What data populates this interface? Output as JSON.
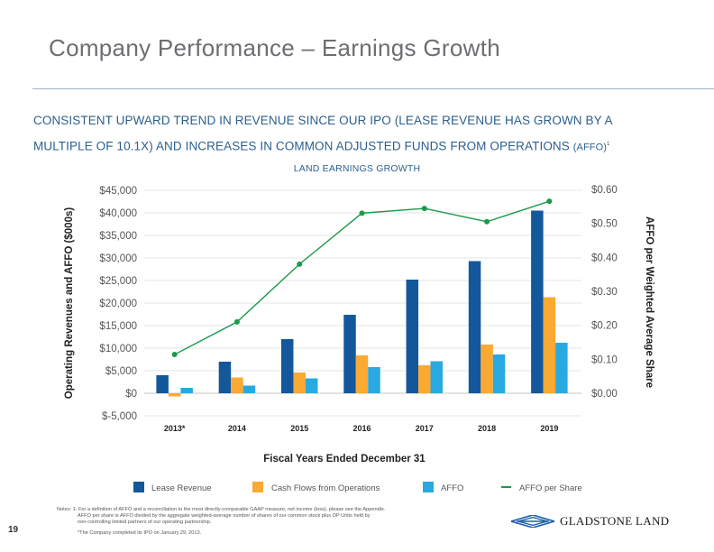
{
  "header": {
    "title": "Company Performance – Earnings Growth"
  },
  "subtitle": {
    "line1": "CONSISTENT UPWARD TREND IN REVENUE SINCE OUR IPO (LEASE REVENUE HAS GROWN BY A",
    "line2": "MULTIPLE OF 10.1X) AND INCREASES IN COMMON ADJUSTED FUNDS FROM OPERATIONS",
    "line2_small": "(AFFO)",
    "footnote_mark": "1"
  },
  "colors": {
    "lease_revenue": "#12589b",
    "cash_flows": "#faa932",
    "affo": "#29a9e1",
    "affo_per_share": "#1a9a4a",
    "title_text": "#6d6e71",
    "subtitle_text": "#2b5f8e",
    "rule": "#9db3cf"
  },
  "chart_data": {
    "type": "bar",
    "title": "LAND EARNINGS GROWTH",
    "xlabel": "Fiscal Years Ended December 31",
    "ylabel": "Operating Revenues and AFFO ($000s)",
    "y2label": "AFFO per Weighted Average Share",
    "categories": [
      "2013*",
      "2014",
      "2015",
      "2016",
      "2017",
      "2018",
      "2019"
    ],
    "ylim": [
      -5000,
      45000
    ],
    "y_ticks": [
      45000,
      40000,
      35000,
      30000,
      25000,
      20000,
      15000,
      10000,
      5000,
      0,
      -5000
    ],
    "y_tick_labels": [
      "$45,000",
      "$40,000",
      "$35,000",
      "$30,000",
      "$25,000",
      "$20,000",
      "$15,000",
      "$10,000",
      "$5,000",
      "$0",
      "$-5,000"
    ],
    "y2lim": [
      0,
      0.6
    ],
    "y2_ticks": [
      0.6,
      0.5,
      0.4,
      0.3,
      0.2,
      0.1,
      0.0
    ],
    "y2_tick_labels": [
      "$0.60",
      "$0.50",
      "$0.40",
      "$0.30",
      "$0.20",
      "$0.10",
      "$0.00"
    ],
    "grid": true,
    "legend_position": "bottom",
    "series": [
      {
        "name": "Lease Revenue",
        "kind": "bar",
        "axis": "left",
        "color_key": "lease_revenue",
        "values": [
          4000,
          7000,
          12000,
          17400,
          25200,
          29300,
          40500
        ]
      },
      {
        "name": "Cash Flows from Operations",
        "kind": "bar",
        "axis": "left",
        "color_key": "cash_flows",
        "values": [
          -700,
          3500,
          4600,
          8400,
          6200,
          10800,
          21300
        ]
      },
      {
        "name": "AFFO",
        "kind": "bar",
        "axis": "left",
        "color_key": "affo",
        "values": [
          1200,
          1700,
          3300,
          5800,
          7100,
          8600,
          11200
        ]
      },
      {
        "name": "AFFO per Share",
        "kind": "line",
        "axis": "right",
        "color_key": "affo_per_share",
        "values": [
          0.114,
          0.21,
          0.38,
          0.53,
          0.544,
          0.505,
          0.565
        ]
      }
    ]
  },
  "footer": {
    "notes_line1": "Notes: 1. For a definition of AFFO and a reconciliation to the most directly-comparable GAAP measure, net income (loss), please see the Appendix.",
    "notes_line2": "AFFO per share is AFFO divided by the aggregate weighted-average number of shares of our common stock plus OP Units held by",
    "notes_line3": "non-controlling limited partners of our operating partnership.",
    "ipo_note": "*The Company completed its IPO on January 29, 2013.",
    "page_number": "19",
    "logo_text": "GLADSTONE LAND"
  }
}
